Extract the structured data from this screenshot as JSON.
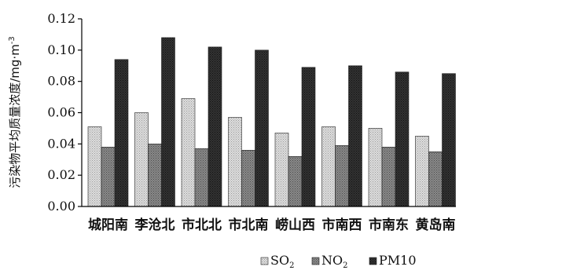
{
  "chart_data": {
    "type": "bar",
    "title": "",
    "xlabel": "",
    "ylabel": "污染物平均质量浓度/mg·m",
    "ylabel_superscript": "-3",
    "ylim": [
      0,
      0.12
    ],
    "yticks": [
      "0.00",
      "0.02",
      "0.04",
      "0.06",
      "0.08",
      "0.10",
      "0.12"
    ],
    "grid": false,
    "legend_position": "bottom",
    "categories": [
      "城阳南",
      "李沧北",
      "市北北",
      "市北南",
      "崂山西",
      "市南西",
      "市南东",
      "黄岛南"
    ],
    "series": [
      {
        "name": "SO",
        "subscript": "2",
        "color": "#c9c9c9",
        "pattern": "dots-light",
        "values": [
          0.051,
          0.06,
          0.069,
          0.057,
          0.047,
          0.051,
          0.05,
          0.045
        ]
      },
      {
        "name": "NO",
        "subscript": "2",
        "color": "#7a7a7a",
        "pattern": "dots-mid",
        "values": [
          0.038,
          0.04,
          0.037,
          0.036,
          0.032,
          0.039,
          0.038,
          0.035
        ]
      },
      {
        "name": "PM10",
        "subscript": "",
        "color": "#2e2e2e",
        "pattern": "dots-dark",
        "values": [
          0.094,
          0.108,
          0.102,
          0.1,
          0.089,
          0.09,
          0.086,
          0.085
        ]
      }
    ]
  }
}
